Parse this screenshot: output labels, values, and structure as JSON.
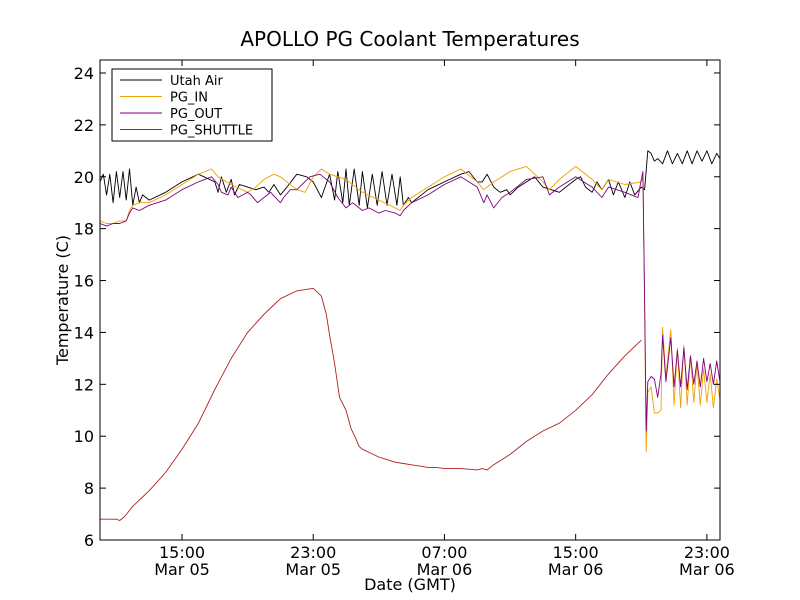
{
  "chart_data": {
    "type": "line",
    "title": "APOLLO PG Coolant Temperatures",
    "xlabel": "Date (GMT)",
    "ylabel": "Temperature (C)",
    "x_unit": "hours since 2023-03-05 10:00 GMT",
    "xlim": [
      0,
      37.8
    ],
    "ylim": [
      6,
      24.5
    ],
    "yticks": [
      6,
      8,
      10,
      12,
      14,
      16,
      18,
      20,
      22,
      24
    ],
    "xticks": [
      {
        "pos": 5,
        "time": "15:00",
        "date": "Mar 05"
      },
      {
        "pos": 13,
        "time": "23:00",
        "date": "Mar 05"
      },
      {
        "pos": 21,
        "time": "07:00",
        "date": "Mar 06"
      },
      {
        "pos": 29,
        "time": "15:00",
        "date": "Mar 06"
      },
      {
        "pos": 37,
        "time": "23:00",
        "date": "Mar 06"
      }
    ],
    "grid": false,
    "legend_position": "top-left",
    "series": [
      {
        "name": "Utah Air",
        "color": "#000000",
        "x": [
          0,
          0.2,
          0.4,
          0.6,
          0.8,
          1.0,
          1.2,
          1.4,
          1.6,
          1.8,
          2.0,
          2.2,
          2.4,
          2.6,
          3.0,
          4.0,
          5.0,
          6.0,
          7.0,
          7.2,
          7.4,
          7.7,
          8.0,
          8.2,
          8.5,
          9.0,
          9.5,
          10.0,
          10.3,
          10.6,
          11.0,
          11.4,
          12.0,
          12.6,
          13.0,
          13.5,
          14.0,
          14.3,
          14.5,
          14.8,
          15.0,
          15.2,
          15.5,
          15.8,
          16.0,
          16.3,
          16.6,
          16.9,
          17.2,
          17.5,
          17.8,
          18.1,
          18.3,
          18.5,
          18.8,
          19.0,
          20.0,
          21.0,
          22.0,
          22.5,
          23.0,
          23.3,
          23.6,
          24.0,
          24.4,
          24.8,
          25.0,
          25.5,
          26.0,
          26.5,
          27.0,
          28.0,
          29.0,
          29.3,
          29.6,
          30.0,
          30.3,
          30.6,
          31.0,
          31.3,
          31.6,
          32.0,
          32.3,
          32.6,
          33.0,
          33.2,
          33.4,
          33.6,
          33.8,
          34.0,
          34.3,
          34.6,
          34.9,
          35.2,
          35.5,
          35.8,
          36.1,
          36.4,
          36.7,
          37.0,
          37.3,
          37.6,
          37.8
        ],
        "y": [
          19.8,
          20.1,
          19.3,
          20.1,
          19.0,
          20.2,
          19.2,
          20.2,
          19.1,
          20.3,
          18.9,
          19.6,
          19.0,
          19.3,
          19.1,
          19.4,
          19.8,
          20.1,
          19.8,
          19.4,
          20.0,
          19.4,
          19.9,
          19.3,
          19.7,
          19.6,
          19.5,
          19.6,
          19.4,
          19.7,
          19.3,
          19.6,
          20.1,
          20.0,
          19.8,
          19.2,
          20.1,
          19.1,
          20.2,
          19.0,
          20.3,
          18.9,
          20.3,
          18.9,
          20.2,
          18.8,
          20.1,
          18.9,
          20.2,
          18.9,
          20.1,
          18.9,
          20.0,
          18.9,
          19.2,
          19.0,
          19.5,
          19.8,
          20.1,
          20.2,
          19.8,
          19.8,
          20.1,
          19.6,
          19.4,
          19.5,
          19.3,
          19.6,
          19.8,
          20.0,
          19.6,
          19.4,
          19.9,
          20.0,
          19.6,
          19.4,
          19.8,
          19.5,
          19.9,
          19.3,
          19.8,
          19.2,
          19.8,
          19.3,
          19.6,
          19.5,
          21.0,
          20.9,
          20.6,
          20.7,
          20.5,
          21.0,
          20.5,
          20.9,
          20.5,
          21.0,
          20.5,
          21.0,
          20.6,
          21.0,
          20.5,
          20.9,
          20.7
        ]
      },
      {
        "name": "PG_IN",
        "color": "#f0a000",
        "x": [
          0,
          0.4,
          0.8,
          1.2,
          1.6,
          1.8,
          2.0,
          2.4,
          3.0,
          4.0,
          5.0,
          6.0,
          6.8,
          7.2,
          8.0,
          9.0,
          9.5,
          10.0,
          10.6,
          11.0,
          12.0,
          12.5,
          13.0,
          13.5,
          14.0,
          15.0,
          16.0,
          17.0,
          18.0,
          18.3,
          18.5,
          19.0,
          20.0,
          21.0,
          22.0,
          23.0,
          23.4,
          24.0,
          25.0,
          26.0,
          27.0,
          27.4,
          28.0,
          29.0,
          30.0,
          30.6,
          31.0,
          32.0,
          33.0,
          33.1,
          33.2,
          33.3,
          33.4,
          33.6,
          33.8,
          34.0,
          34.2,
          34.3,
          34.5,
          34.8,
          35.0,
          35.2,
          35.4,
          35.6,
          35.8,
          36.0,
          36.2,
          36.4,
          36.6,
          36.8,
          37.0,
          37.2,
          37.4,
          37.6,
          37.8
        ],
        "y": [
          18.3,
          18.2,
          18.2,
          18.3,
          18.3,
          18.7,
          18.9,
          19.0,
          19.0,
          19.3,
          19.7,
          20.1,
          20.3,
          20.0,
          19.7,
          19.4,
          19.6,
          19.9,
          20.1,
          20.0,
          19.5,
          19.4,
          20.0,
          20.3,
          20.1,
          19.9,
          19.4,
          19.1,
          18.8,
          18.7,
          18.9,
          19.2,
          19.6,
          20.0,
          20.3,
          19.8,
          19.5,
          19.8,
          20.2,
          20.4,
          19.8,
          19.5,
          19.9,
          20.4,
          19.9,
          19.5,
          19.9,
          19.7,
          19.8,
          20.0,
          15.0,
          9.4,
          11.7,
          11.9,
          10.9,
          10.9,
          11.0,
          14.2,
          12.3,
          14.1,
          11.2,
          13.4,
          11.1,
          13.5,
          11.2,
          13.1,
          11.3,
          12.8,
          11.2,
          12.6,
          11.3,
          12.4,
          11.1,
          12.2,
          11.4
        ]
      },
      {
        "name": "PG_OUT",
        "color": "#800080",
        "x": [
          0,
          0.4,
          0.8,
          1.2,
          1.6,
          1.8,
          2.0,
          2.4,
          3.0,
          4.0,
          5.0,
          6.0,
          6.8,
          7.2,
          7.4,
          7.8,
          8.0,
          8.4,
          9.0,
          9.2,
          9.6,
          10.0,
          10.4,
          11.0,
          11.2,
          11.6,
          12.0,
          12.8,
          13.4,
          14.0,
          14.5,
          15.0,
          15.4,
          16.0,
          16.4,
          17.0,
          17.4,
          18.0,
          18.3,
          18.5,
          19.0,
          20.0,
          21.0,
          22.0,
          23.0,
          23.4,
          23.6,
          24.0,
          24.5,
          25.0,
          26.0,
          27.0,
          27.4,
          28.0,
          29.0,
          30.0,
          30.6,
          31.0,
          32.0,
          32.8,
          33.0,
          33.1,
          33.2,
          33.3,
          33.4,
          33.6,
          33.8,
          34.0,
          34.2,
          34.3,
          34.5,
          34.8,
          35.0,
          35.2,
          35.4,
          35.6,
          35.8,
          36.0,
          36.2,
          36.4,
          36.6,
          36.8,
          37.0,
          37.2,
          37.4,
          37.6,
          37.8
        ],
        "y": [
          18.2,
          18.1,
          18.2,
          18.2,
          18.3,
          18.6,
          18.8,
          18.7,
          18.9,
          19.1,
          19.5,
          19.8,
          20.0,
          19.7,
          19.4,
          19.3,
          19.6,
          19.2,
          19.4,
          19.3,
          19.0,
          19.2,
          19.4,
          19.0,
          19.2,
          19.5,
          19.5,
          20.0,
          20.1,
          19.8,
          19.2,
          18.8,
          19.0,
          18.7,
          18.8,
          18.6,
          18.7,
          18.6,
          18.5,
          18.7,
          19.0,
          19.3,
          19.7,
          20.0,
          19.6,
          19.0,
          19.3,
          18.8,
          19.2,
          19.4,
          19.9,
          20.0,
          19.3,
          19.6,
          20.0,
          19.6,
          19.2,
          19.6,
          19.4,
          19.2,
          19.9,
          20.2,
          15.3,
          10.2,
          12.1,
          12.3,
          12.2,
          11.5,
          12.4,
          13.9,
          12.1,
          13.8,
          11.9,
          13.3,
          11.9,
          13.4,
          11.8,
          13.1,
          12.0,
          12.9,
          11.9,
          13.0,
          12.1,
          12.8,
          12.0,
          12.9,
          12.1
        ]
      },
      {
        "name": "PG_SHUTTLE",
        "color": "#b02020",
        "x": [
          0,
          0.5,
          1.0,
          1.2,
          1.5,
          2.0,
          2.5,
          3.0,
          4.0,
          5.0,
          6.0,
          7.0,
          8.0,
          9.0,
          10.0,
          10.5,
          11.0,
          12.0,
          13.0,
          13.5,
          13.8,
          14.0,
          14.3,
          14.6,
          15.0,
          15.3,
          15.6,
          15.8,
          16.0,
          16.5,
          17.0,
          17.5,
          18.0,
          18.5,
          19.0,
          19.5,
          20.0,
          20.5,
          21.0,
          21.5,
          22.0,
          23.0,
          23.3,
          23.6,
          24.0,
          25.0,
          26.0,
          27.0,
          28.0,
          29.0,
          30.0,
          31.0,
          32.0,
          33.0
        ],
        "y": [
          6.8,
          6.8,
          6.8,
          6.75,
          6.9,
          7.3,
          7.6,
          7.9,
          8.6,
          9.5,
          10.5,
          11.8,
          13.0,
          14.0,
          14.7,
          15.0,
          15.3,
          15.6,
          15.7,
          15.4,
          14.7,
          13.9,
          12.8,
          11.5,
          11.0,
          10.3,
          9.9,
          9.6,
          9.5,
          9.35,
          9.2,
          9.1,
          9.0,
          8.95,
          8.9,
          8.85,
          8.8,
          8.8,
          8.75,
          8.75,
          8.75,
          8.7,
          8.75,
          8.7,
          8.9,
          9.3,
          9.8,
          10.2,
          10.5,
          11.0,
          11.6,
          12.4,
          13.1,
          13.7
        ]
      }
    ]
  }
}
